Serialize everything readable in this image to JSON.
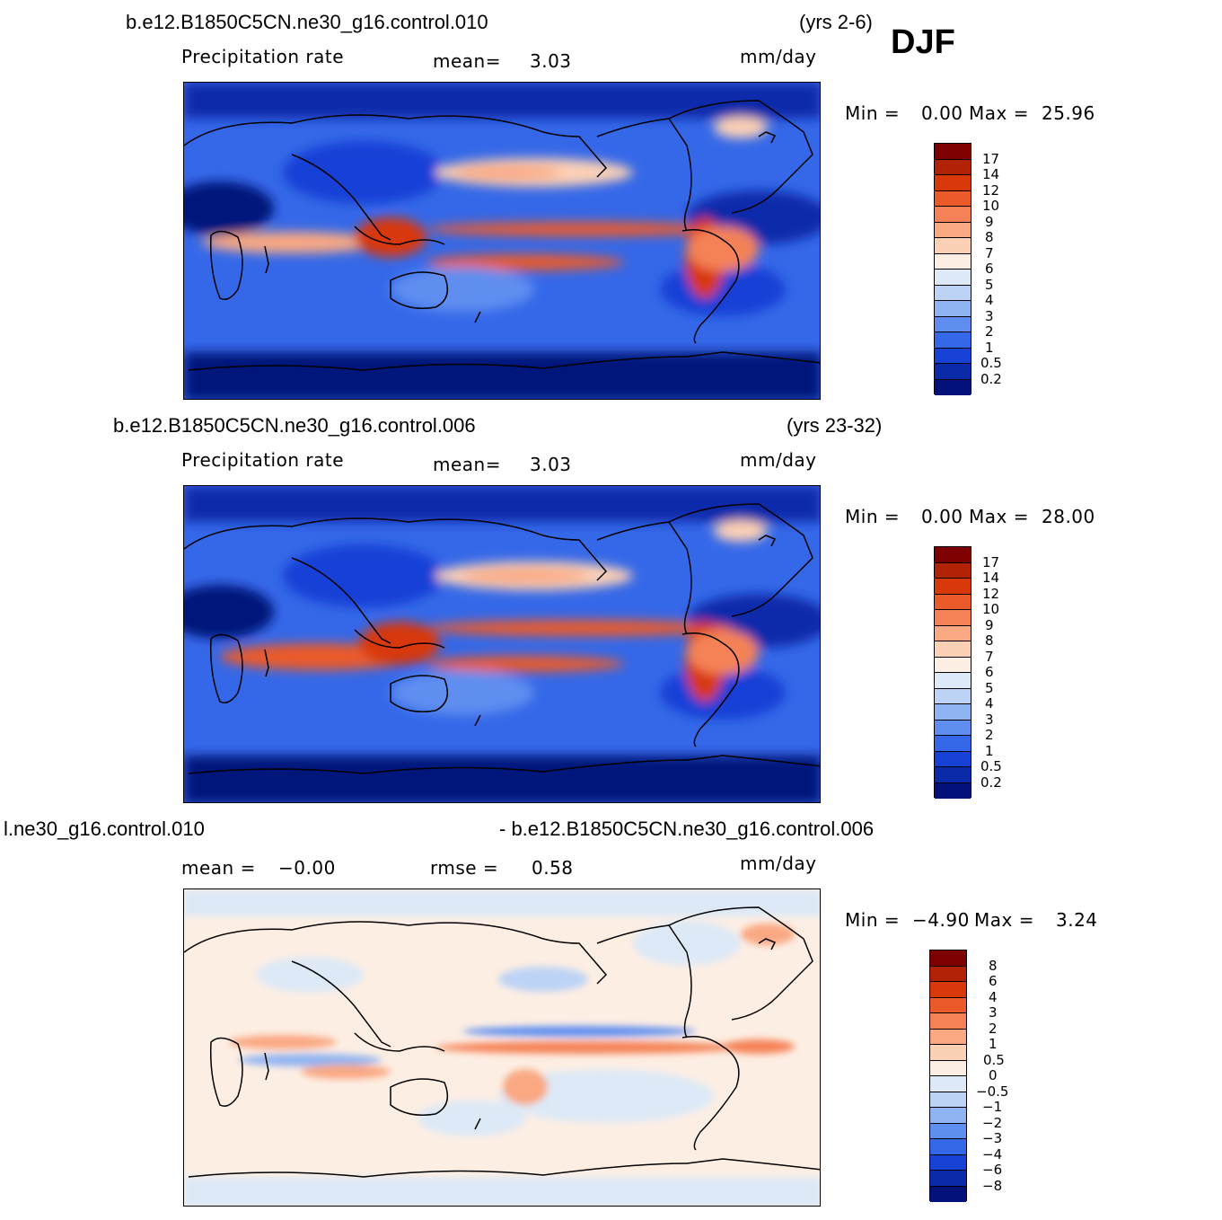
{
  "season": "DJF",
  "panels": [
    {
      "case_title": "b.e12.B1850C5CN.ne30_g16.control.010",
      "years": "(yrs 2-6)",
      "variable": "Precipitation  rate",
      "mean_label": "mean=",
      "mean_value": "3.03",
      "units": "mm/day",
      "min_label": "Min =",
      "min_value": "0.00",
      "max_label": "Max =",
      "max_value": "25.96",
      "colorbar_labels": [
        "17",
        "14",
        "12",
        "10",
        "9",
        "8",
        "7",
        "6",
        "5",
        "4",
        "3",
        "2",
        "1",
        "0.5",
        "0.2"
      ]
    },
    {
      "case_title": "b.e12.B1850C5CN.ne30_g16.control.006",
      "years": "(yrs 23-32)",
      "variable": "Precipitation  rate",
      "mean_label": "mean=",
      "mean_value": "3.03",
      "units": "mm/day",
      "min_label": "Min =",
      "min_value": "0.00",
      "max_label": "Max =",
      "max_value": "28.00",
      "colorbar_labels": [
        "17",
        "14",
        "12",
        "10",
        "9",
        "8",
        "7",
        "6",
        "5",
        "4",
        "3",
        "2",
        "1",
        "0.5",
        "0.2"
      ]
    },
    {
      "case_title_left": "l.ne30_g16.control.010",
      "case_title_right": "- b.e12.B1850C5CN.ne30_g16.control.006",
      "mean_label": "mean =",
      "mean_value": "−0.00",
      "rmse_label": "rmse =",
      "rmse_value": "0.58",
      "units": "mm/day",
      "min_label": "Min =",
      "min_value": "−4.90",
      "max_label": "Max =",
      "max_value": "3.24",
      "colorbar_labels": [
        "8",
        "6",
        "4",
        "3",
        "2",
        "1",
        "0.5",
        "0",
        "−0.5",
        "−1",
        "−2",
        "−3",
        "−4",
        "−6",
        "−8"
      ]
    }
  ],
  "colors": {
    "abs_scale": [
      "#7f0000",
      "#b22205",
      "#d8380a",
      "#ea5a2a",
      "#f58257",
      "#f9a882",
      "#fcd0b5",
      "#fdeee3",
      "#dde9f7",
      "#bdd3f5",
      "#8fb4f2",
      "#5f8ef0",
      "#3568e8",
      "#1841d6",
      "#0a2aaa",
      "#03127a"
    ],
    "diff_scale": [
      "#7f0000",
      "#b22205",
      "#d8380a",
      "#ea5a2a",
      "#f58257",
      "#f9a882",
      "#fcd0b5",
      "#fdeee3",
      "#dde9f7",
      "#bdd3f5",
      "#8fb4f2",
      "#5f8ef0",
      "#3568e8",
      "#1841d6",
      "#0a2aaa",
      "#03127a"
    ]
  }
}
